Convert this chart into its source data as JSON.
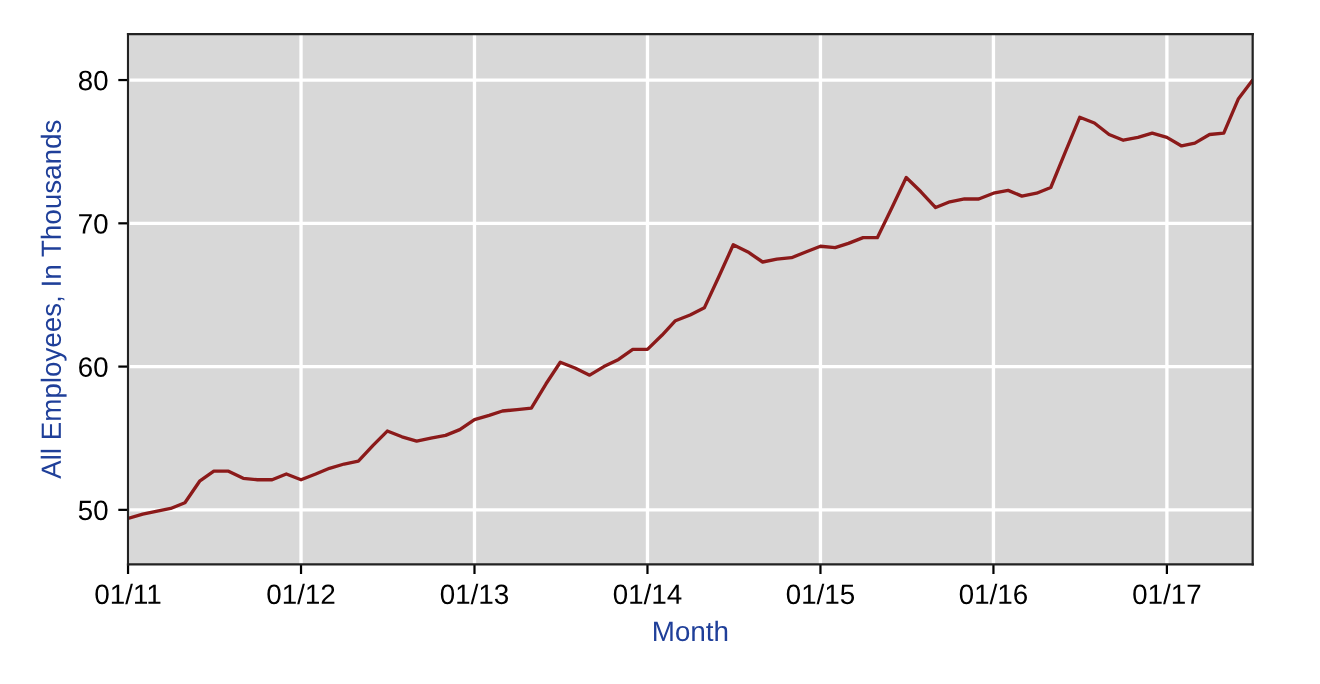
{
  "chart_data": {
    "type": "line",
    "xlabel": "Month",
    "ylabel": "All Employees, In Thousands",
    "x": [
      "2011-01",
      "2011-02",
      "2011-03",
      "2011-04",
      "2011-05",
      "2011-06",
      "2011-07",
      "2011-08",
      "2011-09",
      "2011-10",
      "2011-11",
      "2011-12",
      "2012-01",
      "2012-02",
      "2012-03",
      "2012-04",
      "2012-05",
      "2012-06",
      "2012-07",
      "2012-08",
      "2012-09",
      "2012-10",
      "2012-11",
      "2012-12",
      "2013-01",
      "2013-02",
      "2013-03",
      "2013-04",
      "2013-05",
      "2013-06",
      "2013-07",
      "2013-08",
      "2013-09",
      "2013-10",
      "2013-11",
      "2013-12",
      "2014-01",
      "2014-02",
      "2014-03",
      "2014-04",
      "2014-05",
      "2014-06",
      "2014-07",
      "2014-08",
      "2014-09",
      "2014-10",
      "2014-11",
      "2014-12",
      "2015-01",
      "2015-02",
      "2015-03",
      "2015-04",
      "2015-05",
      "2015-06",
      "2015-07",
      "2015-08",
      "2015-09",
      "2015-10",
      "2015-11",
      "2015-12",
      "2016-01",
      "2016-02",
      "2016-03",
      "2016-04",
      "2016-05",
      "2016-06",
      "2016-07",
      "2016-08",
      "2016-09",
      "2016-10",
      "2016-11",
      "2016-12",
      "2017-01",
      "2017-02",
      "2017-03",
      "2017-04",
      "2017-05",
      "2017-06",
      "2017-07"
    ],
    "series": [
      {
        "color": "#8b1a1a",
        "values": [
          49.4,
          49.7,
          49.9,
          50.1,
          50.5,
          52.0,
          52.7,
          52.7,
          52.2,
          52.1,
          52.1,
          52.5,
          52.1,
          52.5,
          52.9,
          53.2,
          53.4,
          54.5,
          55.5,
          55.1,
          54.8,
          55.0,
          55.2,
          55.6,
          56.3,
          56.6,
          56.9,
          57.0,
          57.1,
          58.8,
          60.3,
          59.9,
          59.4,
          60.0,
          60.5,
          61.2,
          61.2,
          62.2,
          63.2,
          63.6,
          64.1,
          66.3,
          68.5,
          68.0,
          67.3,
          67.5,
          67.6,
          68.0,
          68.4,
          68.3,
          68.6,
          69.0,
          69.0,
          71.1,
          73.2,
          72.2,
          71.1,
          71.5,
          71.7,
          71.7,
          72.1,
          72.3,
          71.9,
          72.1,
          72.5,
          75.0,
          77.4,
          77.0,
          76.2,
          75.8,
          76.0,
          76.3,
          76.0,
          75.4,
          75.6,
          76.2,
          76.3,
          78.7,
          80.0
        ]
      }
    ],
    "xlim": [
      "2011-01",
      "2017-07"
    ],
    "xticks": [
      {
        "value": "2011-01",
        "label": "01/11"
      },
      {
        "value": "2012-01",
        "label": "01/12"
      },
      {
        "value": "2013-01",
        "label": "01/13"
      },
      {
        "value": "2014-01",
        "label": "01/14"
      },
      {
        "value": "2015-01",
        "label": "01/15"
      },
      {
        "value": "2016-01",
        "label": "01/16"
      },
      {
        "value": "2017-01",
        "label": "01/17"
      }
    ],
    "ylim": [
      46.2,
      83.2
    ],
    "yticks": [
      50,
      60,
      70,
      80
    ],
    "grid": true,
    "legend": false,
    "marker": "none",
    "line_style": "solid"
  }
}
